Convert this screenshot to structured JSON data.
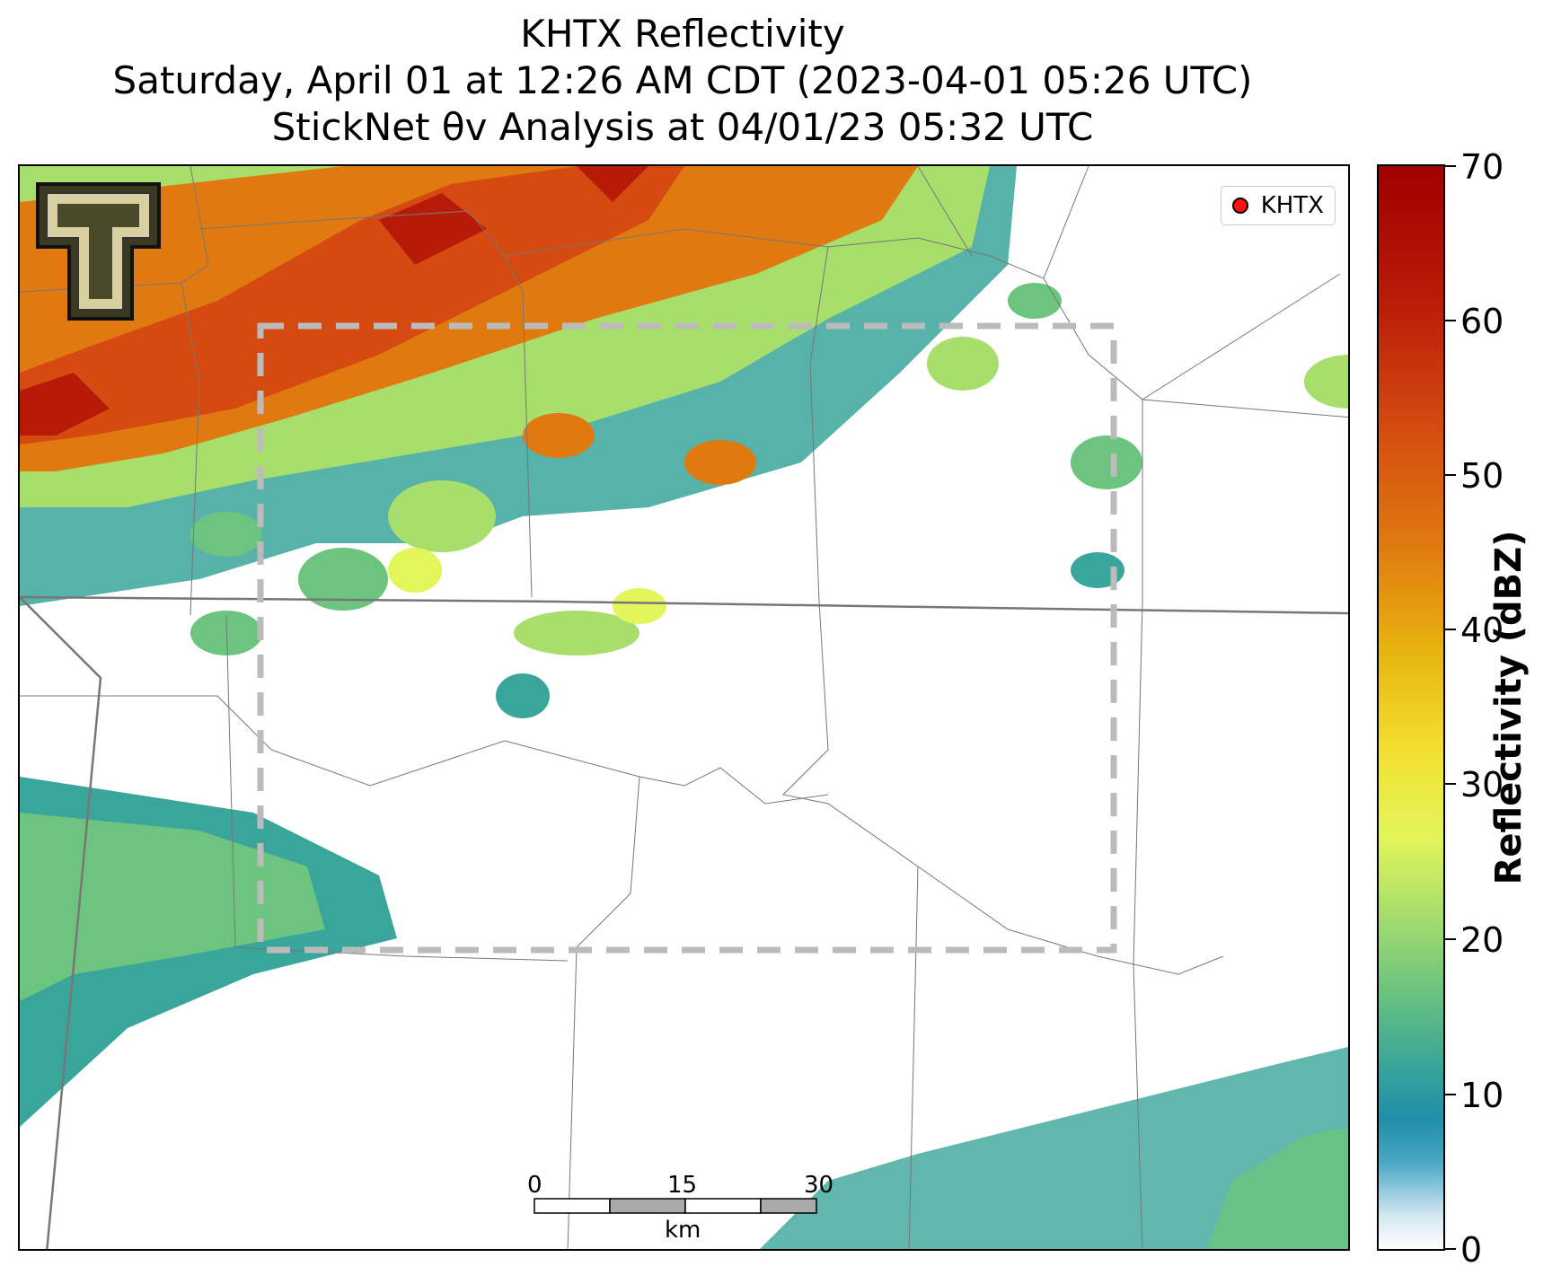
{
  "title": {
    "line1": "KHTX Reflectivity",
    "line2": "Saturday, April 01 at 12:26 AM CDT (2023-04-01 05:26 UTC)",
    "line3": "StickNet θv Analysis at 04/01/23 05:32 UTC"
  },
  "legend": {
    "label": "KHTX",
    "marker_color": "#ff1010"
  },
  "scalebar": {
    "ticks": [
      "0",
      "15",
      "30"
    ],
    "unit": "km"
  },
  "colorbar": {
    "title": "Reflectivity (dBZ)",
    "ticks": [
      "0",
      "10",
      "20",
      "30",
      "40",
      "50",
      "60",
      "70"
    ],
    "range": [
      0,
      70
    ]
  },
  "colors": {
    "high": "#b81a08",
    "orange": "#e07a10",
    "yellow": "#e3f55a",
    "green": "#6cc47e",
    "teal": "#1e8fa8",
    "light": "#d6e9f3"
  },
  "logo": {
    "name": "Texas Tech Double T"
  }
}
